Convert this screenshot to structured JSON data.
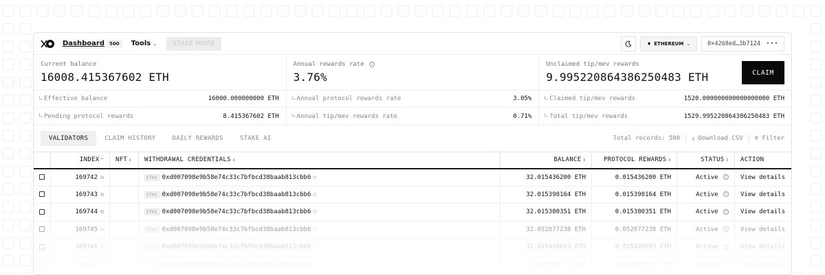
{
  "header": {
    "nav_dashboard": "Dashboard",
    "dashboard_badge": "500",
    "nav_tools": "Tools",
    "stake_more": "STAKE MORE",
    "network": "ETHEREUM",
    "address": "0×4268ed…3b7124",
    "icons": [
      "logo-icon",
      "chevron-down-icon",
      "moon-icon",
      "ethereum-icon",
      "more-icon"
    ]
  },
  "stats": {
    "balance": {
      "label": "Current balance",
      "value": "16008.415367602 ETH",
      "rows": [
        {
          "label": "Effective balance",
          "value": "16000.000000000 ETH"
        },
        {
          "label": "Pending protocol rewards",
          "value": "8.415367602 ETH"
        }
      ]
    },
    "rate": {
      "label": "Annual rewards rate",
      "value": "3.76%",
      "rows": [
        {
          "label": "Annual protocol rewards rate",
          "value": "3.05%"
        },
        {
          "label": "Annual tip/mev rewards rate",
          "value": "0.71%"
        }
      ]
    },
    "unclaimed": {
      "label": "Unclaimed tip/mev rewards",
      "value": "9.995220864386250483 ETH",
      "claim_label": "CLAIM",
      "rows": [
        {
          "label": "Claimed tip/mev rewards",
          "value": "1520.000000000000000000 ETH"
        },
        {
          "label": "Total tip/mev rewards",
          "value": "1529.995220864386250483 ETH"
        }
      ]
    }
  },
  "tabs": {
    "items": [
      "VALIDATORS",
      "CLAIM HISTORY",
      "DAILY REWARDS",
      "STAKE AI"
    ],
    "active": "VALIDATORS",
    "total_records": "Total records: 500",
    "download": "Download CSV",
    "filter": "Filter"
  },
  "table": {
    "columns": {
      "index": "INDEX",
      "nft": "NFT",
      "credentials": "WITHDRAWAL CREDENTIALS",
      "balance": "BALANCE",
      "protocol_rewards": "PROTOCOL REWARDS",
      "status": "STATUS",
      "action": "ACTION"
    },
    "rows": [
      {
        "index": "169742",
        "tag": "ETH1",
        "credentials": "0xd007098e9b58e74c33c7bfbcd38baab813cbb6",
        "balance": "32.015436200 ETH",
        "protocol": "0.015436200 ETH",
        "status": "Active",
        "action": "View details"
      },
      {
        "index": "169743",
        "tag": "ETH1",
        "credentials": "0xd007098e9b58e74c33c7bfbcd38baab813cbb6",
        "balance": "32.015398164 ETH",
        "protocol": "0.015398164 ETH",
        "status": "Active",
        "action": "View details"
      },
      {
        "index": "169744",
        "tag": "ETH1",
        "credentials": "0xd007098e9b58e74c33c7bfbcd38baab813cbb6",
        "balance": "32.015380351 ETH",
        "protocol": "0.015380351 ETH",
        "status": "Active",
        "action": "View details"
      },
      {
        "index": "169745",
        "tag": "ETH1",
        "credentials": "0xd007098e9b58e74c33c7bfbcd38baab813cbb6",
        "balance": "32.052877238 ETH",
        "protocol": "0.052877238 ETH",
        "status": "Active",
        "action": "View details"
      },
      {
        "index": "169746",
        "tag": "ETH1",
        "credentials": "0xd007098e9b58e74c33c7bfbcd38baab813cbb6",
        "balance": "32.015420653 ETH",
        "protocol": "0.015420653 ETH",
        "status": "Active",
        "action": "View details"
      },
      {
        "index": "169747",
        "tag": "ETH1",
        "credentials": "0xd007098e9b58e74c33c7bfbcd38baab813cbb6",
        "balance": "32.015359733 ETH",
        "protocol": "0.015359733 ETH",
        "status": "Active",
        "action": "View details"
      }
    ]
  }
}
